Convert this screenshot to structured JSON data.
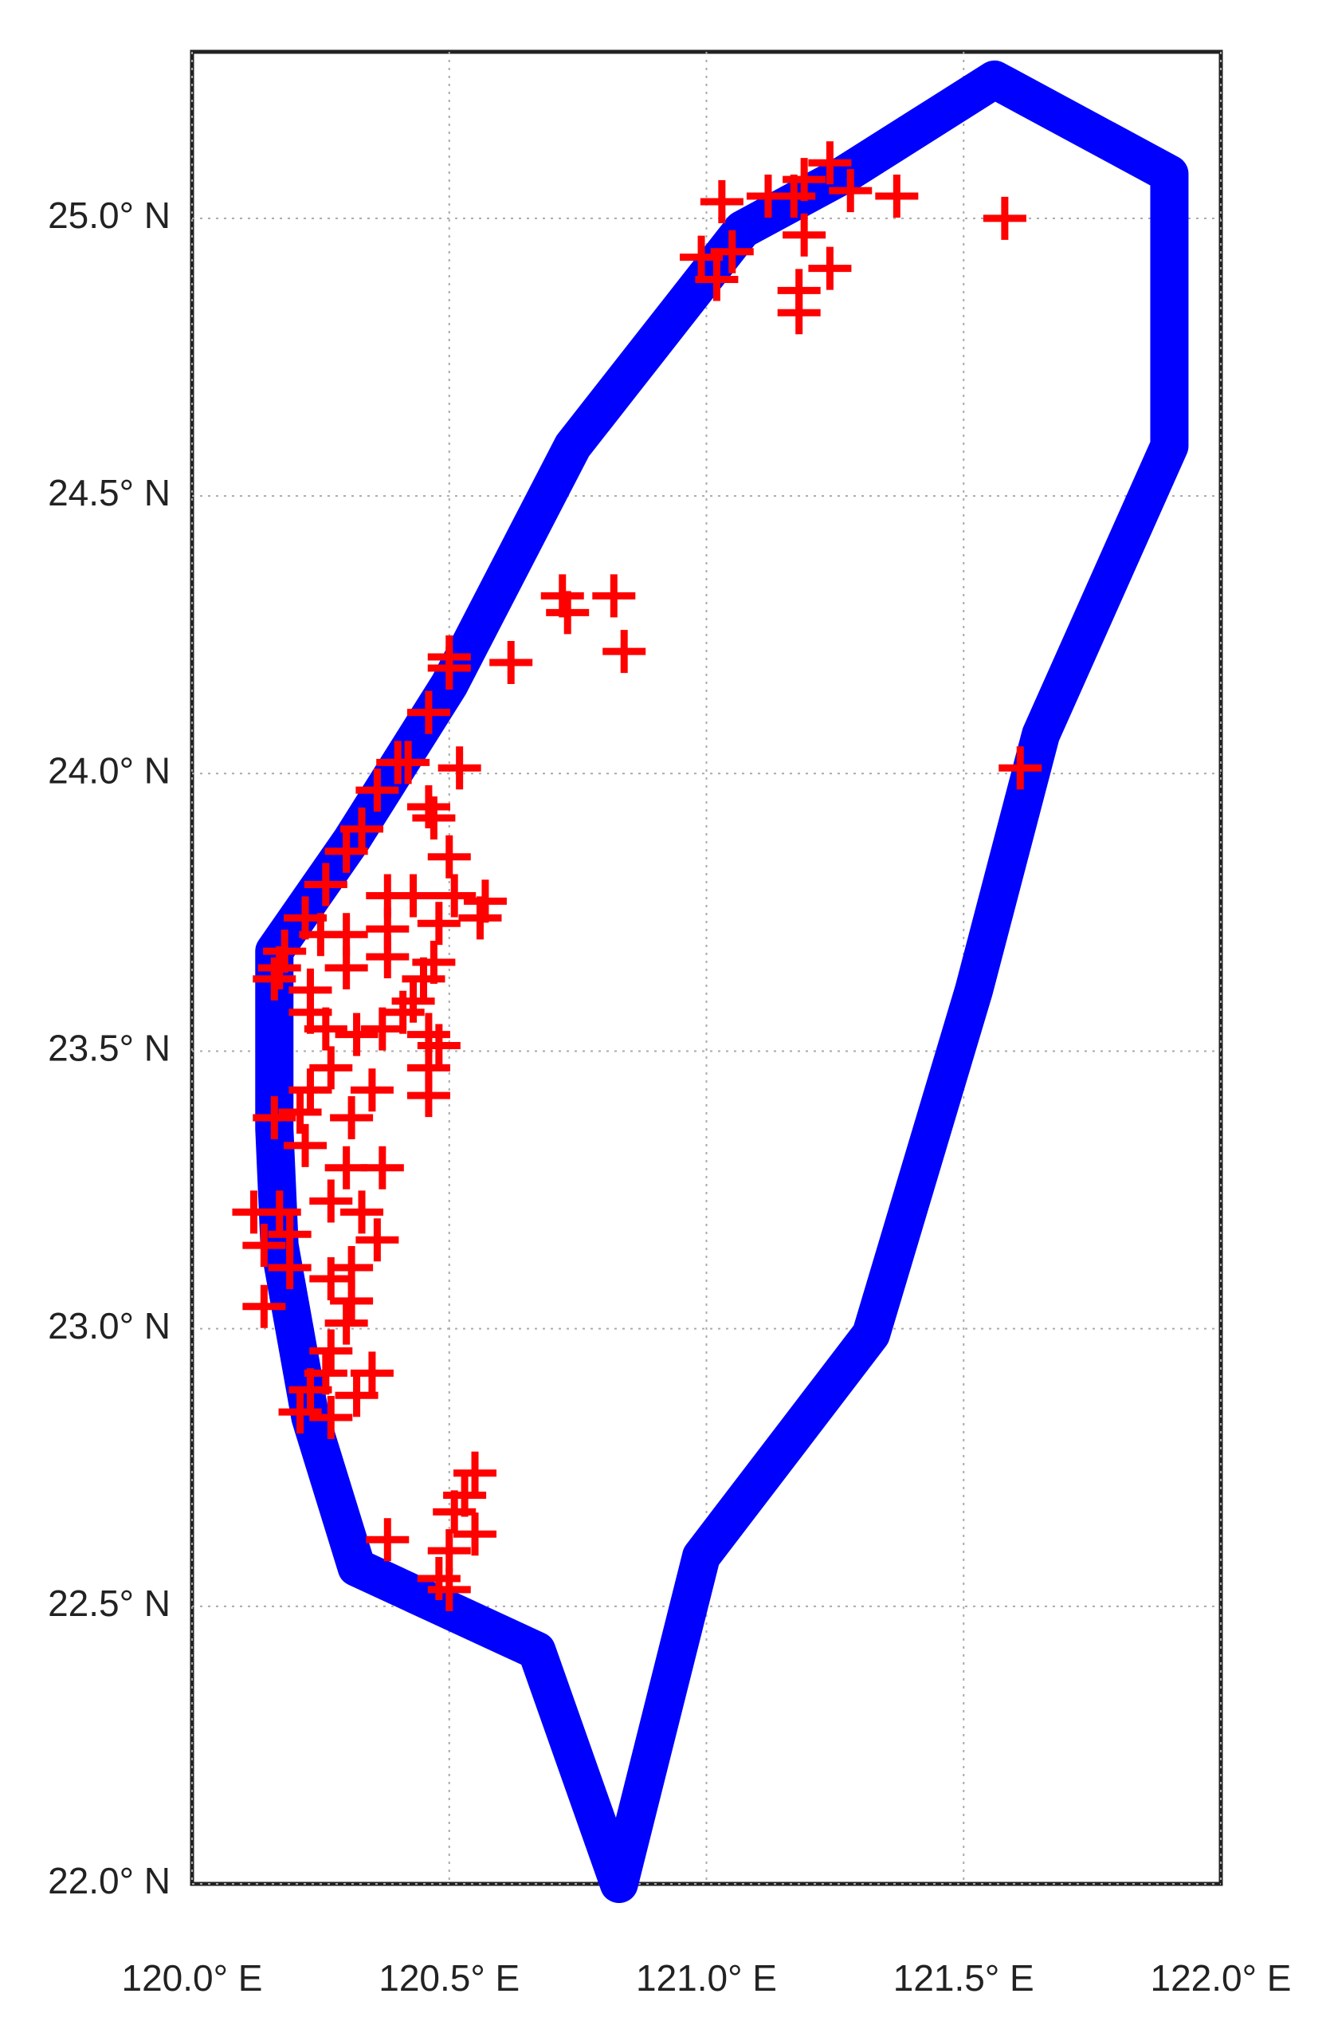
{
  "chart_data": {
    "type": "map",
    "xlim": [
      120.0,
      122.0
    ],
    "ylim": [
      22.0,
      25.3
    ],
    "xticks": [
      {
        "value": 120.0,
        "label": "120.0° E"
      },
      {
        "value": 120.5,
        "label": "120.5° E"
      },
      {
        "value": 121.0,
        "label": "121.0° E"
      },
      {
        "value": 121.5,
        "label": "121.5° E"
      },
      {
        "value": 122.0,
        "label": "122.0° E"
      }
    ],
    "yticks": [
      {
        "value": 22.0,
        "label": "22.0° N"
      },
      {
        "value": 22.5,
        "label": "22.5° N"
      },
      {
        "value": 23.0,
        "label": "23.0° N"
      },
      {
        "value": 23.5,
        "label": "23.5° N"
      },
      {
        "value": 24.0,
        "label": "24.0° N"
      },
      {
        "value": 24.5,
        "label": "24.5° N"
      },
      {
        "value": 25.0,
        "label": "25.0° N"
      }
    ],
    "grid": true,
    "series": [
      {
        "type": "line",
        "color": "#0000ff",
        "x": [
          120.83,
          120.67,
          120.32,
          120.23,
          120.17,
          120.16,
          120.16,
          120.31,
          120.5,
          120.74,
          121.07,
          121.27,
          121.56,
          121.9,
          121.9,
          121.65,
          121.52,
          121.32,
          120.99,
          120.83
        ],
        "y": [
          22.0,
          22.42,
          22.57,
          22.84,
          23.15,
          23.36,
          23.68,
          23.88,
          24.16,
          24.59,
          24.98,
          25.08,
          25.25,
          25.08,
          24.59,
          24.07,
          23.61,
          22.99,
          22.59,
          22.0
        ]
      },
      {
        "type": "scatter",
        "color": "#ff0000",
        "x": [
          121.03,
          121.12,
          121.17,
          121.19,
          121.24,
          121.28,
          121.37,
          121.58,
          120.99,
          121.02,
          121.05,
          121.19,
          121.24,
          121.18,
          121.18,
          121.61,
          120.72,
          120.82,
          120.84,
          120.73,
          120.62,
          120.5,
          120.5,
          120.46,
          120.52,
          120.4,
          120.42,
          120.36,
          120.46,
          120.47,
          120.5,
          120.33,
          120.3,
          120.26,
          120.22,
          120.38,
          120.43,
          120.51,
          120.57,
          120.56,
          120.48,
          120.38,
          120.3,
          120.25,
          120.18,
          120.17,
          120.16,
          120.23,
          120.3,
          120.38,
          120.47,
          120.45,
          120.43,
          120.41,
          120.37,
          120.32,
          120.26,
          120.23,
          120.46,
          120.48,
          120.46,
          120.46,
          120.35,
          120.31,
          120.27,
          120.23,
          120.21,
          120.16,
          120.22,
          120.3,
          120.37,
          120.27,
          120.33,
          120.36,
          120.31,
          120.12,
          120.17,
          120.19,
          120.14,
          120.19,
          120.27,
          120.31,
          120.14,
          120.3,
          120.27,
          120.35,
          120.26,
          120.23,
          120.32,
          120.21,
          120.27,
          120.38,
          120.55,
          120.51,
          120.55,
          120.5,
          120.5,
          120.48,
          120.53
        ],
        "y": [
          25.03,
          25.04,
          25.04,
          25.07,
          25.1,
          25.05,
          25.04,
          25.0,
          24.93,
          24.89,
          24.94,
          24.97,
          24.91,
          24.87,
          24.83,
          24.01,
          24.32,
          24.32,
          24.22,
          24.29,
          24.2,
          24.21,
          24.19,
          24.11,
          24.01,
          24.02,
          24.02,
          23.97,
          23.94,
          23.92,
          23.85,
          23.9,
          23.86,
          23.8,
          23.74,
          23.78,
          23.78,
          23.78,
          23.77,
          23.74,
          23.73,
          23.72,
          23.71,
          23.71,
          23.68,
          23.65,
          23.63,
          23.61,
          23.65,
          23.67,
          23.66,
          23.63,
          23.59,
          23.57,
          23.54,
          23.53,
          23.54,
          23.57,
          23.53,
          23.51,
          23.47,
          23.42,
          23.43,
          23.38,
          23.47,
          23.43,
          23.39,
          23.38,
          23.33,
          23.29,
          23.29,
          23.23,
          23.21,
          23.16,
          23.11,
          23.21,
          23.21,
          23.17,
          23.15,
          23.11,
          23.09,
          23.05,
          23.04,
          23.01,
          22.96,
          22.92,
          22.92,
          22.89,
          22.88,
          22.85,
          22.84,
          22.62,
          22.74,
          22.67,
          22.63,
          22.6,
          22.53,
          22.55,
          22.7
        ]
      }
    ]
  }
}
